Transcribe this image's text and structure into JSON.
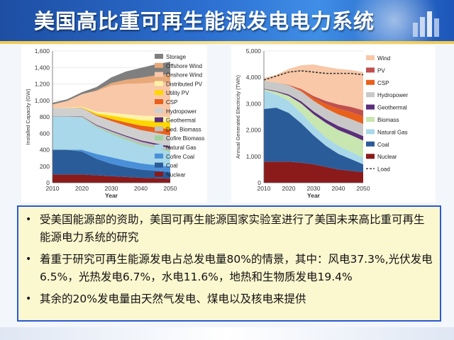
{
  "page": {
    "title": "美国高比重可再生能源发电电力系统"
  },
  "notes": [
    "受美国能源部的资助，美国可再生能源国家实验室进行了美国未来高比重可再生能源电力系统的研究",
    "着重于研究可再生能源发电占总发电量80%的情景，其中：风电37.3%,光伏发电6.5%，光热发电6.7%，水电11.6%，地热和生物质发电19.4%",
    "其余的20%发电量由天然气发电、煤电以及核电来提供"
  ],
  "chart_data": [
    {
      "type": "area",
      "stacked": true,
      "title": "",
      "xlabel": "Year",
      "ylabel": "Installed Capacity (GW)",
      "x": [
        2010,
        2015,
        2020,
        2025,
        2030,
        2035,
        2040,
        2045,
        2050
      ],
      "xticks": [
        2010,
        2020,
        2030,
        2040,
        2050
      ],
      "xticklabels": [
        "2010",
        "2020",
        "2030",
        "2040",
        "2050"
      ],
      "ylim": [
        0,
        1600
      ],
      "yticks": [
        0,
        200,
        400,
        600,
        800,
        1000,
        1200,
        1400,
        1600
      ],
      "yticklabels": [
        "0",
        "200",
        "400",
        "600",
        "800",
        "1,000",
        "1,200",
        "1,400",
        "1,600"
      ],
      "series": [
        {
          "name": "Nuclear",
          "color": "#8b1a1a",
          "values": [
            100,
            100,
            100,
            90,
            80,
            70,
            60,
            55,
            50
          ]
        },
        {
          "name": "Coal",
          "color": "#2b5c9a",
          "values": [
            300,
            300,
            280,
            200,
            150,
            120,
            100,
            90,
            80
          ]
        },
        {
          "name": "Cofire Coal",
          "color": "#4a90d9",
          "values": [
            0,
            0,
            20,
            60,
            80,
            80,
            75,
            70,
            65
          ]
        },
        {
          "name": "Natural Gas",
          "color": "#a8d8ea",
          "values": [
            400,
            400,
            390,
            320,
            280,
            250,
            220,
            200,
            180
          ]
        },
        {
          "name": "Cofire Biomass",
          "color": "#9ed39e",
          "values": [
            0,
            0,
            5,
            10,
            15,
            15,
            15,
            15,
            15
          ]
        },
        {
          "name": "Ded. Biomass",
          "color": "#bfbfbf",
          "values": [
            5,
            5,
            10,
            15,
            20,
            25,
            30,
            30,
            30
          ]
        },
        {
          "name": "Geothermal",
          "color": "#5b2e7a",
          "values": [
            3,
            3,
            5,
            8,
            10,
            12,
            15,
            18,
            20
          ]
        },
        {
          "name": "Hydropower",
          "color": "#cfcfcf",
          "values": [
            100,
            100,
            100,
            110,
            115,
            120,
            125,
            130,
            135
          ]
        },
        {
          "name": "CSP",
          "color": "#e8601c",
          "values": [
            1,
            1,
            2,
            10,
            25,
            40,
            55,
            65,
            75
          ]
        },
        {
          "name": "Utility PV",
          "color": "#ffd700",
          "values": [
            1,
            2,
            5,
            20,
            40,
            55,
            65,
            75,
            85
          ]
        },
        {
          "name": "Distributed PV",
          "color": "#fff2a8",
          "values": [
            1,
            3,
            8,
            20,
            35,
            45,
            55,
            60,
            65
          ]
        },
        {
          "name": "Onshore Wind",
          "color": "#f8c8a8",
          "values": [
            40,
            80,
            150,
            250,
            330,
            370,
            390,
            410,
            420
          ]
        },
        {
          "name": "Offshore Wind",
          "color": "#e8a878",
          "values": [
            0,
            0,
            0,
            10,
            30,
            50,
            70,
            85,
            100
          ]
        },
        {
          "name": "Storage",
          "color": "#7f7f7f",
          "values": [
            20,
            20,
            25,
            40,
            70,
            100,
            120,
            135,
            150
          ]
        }
      ]
    },
    {
      "type": "area",
      "stacked": true,
      "title": "",
      "xlabel": "Year",
      "ylabel": "Annual Generated Electricity (TWh)",
      "x": [
        2010,
        2015,
        2020,
        2025,
        2030,
        2035,
        2040,
        2045,
        2050
      ],
      "xticks": [
        2010,
        2020,
        2030,
        2040,
        2050
      ],
      "xticklabels": [
        "2010",
        "2020",
        "2030",
        "2040",
        "2050"
      ],
      "ylim": [
        0,
        5000
      ],
      "yticks": [
        0,
        1000,
        2000,
        3000,
        4000,
        5000
      ],
      "yticklabels": [
        "0",
        "1,000",
        "2,000",
        "3,000",
        "4,000",
        "5,000"
      ],
      "series": [
        {
          "name": "Nuclear",
          "color": "#8b1a1a",
          "values": [
            800,
            800,
            800,
            760,
            700,
            600,
            500,
            450,
            400
          ]
        },
        {
          "name": "Coal",
          "color": "#2b5c9a",
          "values": [
            2000,
            2050,
            1850,
            1500,
            1100,
            800,
            600,
            450,
            300
          ]
        },
        {
          "name": "Natural Gas",
          "color": "#a8d8ea",
          "values": [
            700,
            500,
            450,
            400,
            350,
            320,
            300,
            280,
            250
          ]
        },
        {
          "name": "Biomass",
          "color": "#c8e6b0",
          "values": [
            50,
            100,
            200,
            350,
            450,
            550,
            600,
            630,
            650
          ]
        },
        {
          "name": "Geothermal",
          "color": "#5b2e7a",
          "values": [
            20,
            30,
            50,
            80,
            110,
            130,
            150,
            160,
            170
          ]
        },
        {
          "name": "Hydropower",
          "color": "#c8c8c8",
          "values": [
            300,
            320,
            350,
            380,
            400,
            420,
            440,
            450,
            460
          ]
        },
        {
          "name": "CSP",
          "color": "#e8601c",
          "values": [
            0,
            0,
            10,
            50,
            100,
            160,
            220,
            260,
            290
          ]
        },
        {
          "name": "PV",
          "color": "#c0504d",
          "values": [
            0,
            0,
            10,
            40,
            80,
            120,
            160,
            200,
            230
          ]
        },
        {
          "name": "Wind",
          "color": "#f8c8a8",
          "values": [
            100,
            300,
            600,
            900,
            1200,
            1300,
            1350,
            1400,
            1450
          ]
        },
        {
          "name": "Load",
          "color": "#333333",
          "style": "dashed",
          "line_values": [
            3900,
            4050,
            4200,
            4250,
            4200,
            4150,
            4150,
            4150,
            4100
          ]
        }
      ]
    }
  ]
}
